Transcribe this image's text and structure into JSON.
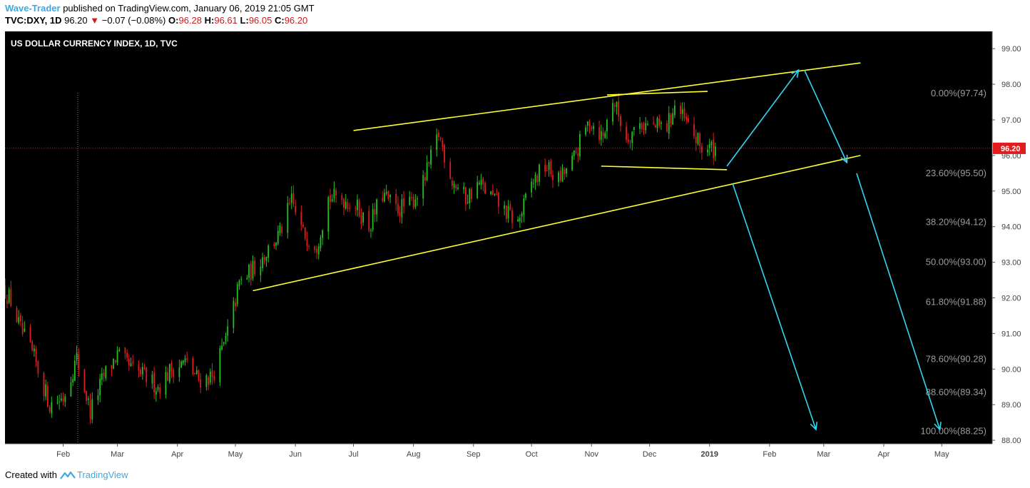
{
  "header": {
    "author": "Wave-Trader",
    "published": "published on TradingView.com, January 06, 2019 21:05 GMT",
    "symbol": "TVC:DXY, 1D",
    "last": "96.20",
    "change": "−0.07 (−0.08%)",
    "o_label": "O:",
    "o": "96.28",
    "h_label": "H:",
    "h": "96.61",
    "l_label": "L:",
    "l": "96.05",
    "c_label": "C:",
    "c": "96.20"
  },
  "footer": {
    "created_with": "Created with",
    "brand": "TradingView"
  },
  "chart_data": {
    "type": "candlestick",
    "title": "US DOLLAR CURRENCY INDEX, 1D, TVC",
    "ylim": [
      87.9,
      99.5
    ],
    "y_ticks": [
      "99.00",
      "98.00",
      "97.00",
      "96.00",
      "95.00",
      "94.00",
      "93.00",
      "92.00",
      "91.00",
      "90.00",
      "89.00",
      "88.00"
    ],
    "x_ticks": [
      "Feb",
      "Mar",
      "Apr",
      "May",
      "Jun",
      "Jul",
      "Aug",
      "Sep",
      "Oct",
      "Nov",
      "Dec",
      "2019",
      "Feb",
      "Mar",
      "Apr",
      "May"
    ],
    "last_price": 96.2,
    "last_price_label": "96.20",
    "colors": {
      "up": "#22c122",
      "down": "#e01c1c",
      "trend": "#ffff33",
      "arrows": "#33d6f0",
      "background": "#000000"
    },
    "fib_levels": [
      {
        "label": "0.00%(97.74)",
        "value": 97.74
      },
      {
        "label": "23.60%(95.50)",
        "value": 95.5
      },
      {
        "label": "38.20%(94.12)",
        "value": 94.12
      },
      {
        "label": "50.00%(93.00)",
        "value": 93.0
      },
      {
        "label": "61.80%(91.88)",
        "value": 91.88
      },
      {
        "label": "78.60%(90.28)",
        "value": 90.28
      },
      {
        "label": "88.60%(89.34)",
        "value": 89.34
      },
      {
        "label": "100.00%(88.25)",
        "value": 88.25
      }
    ],
    "price_path": [
      [
        "2018-01-01",
        92.3
      ],
      [
        "2018-01-05",
        91.9
      ],
      [
        "2018-01-10",
        91.1
      ],
      [
        "2018-01-17",
        90.3
      ],
      [
        "2018-01-25",
        89.0
      ],
      [
        "2018-02-01",
        89.2
      ],
      [
        "2018-02-08",
        90.3
      ],
      [
        "2018-02-15",
        88.8
      ],
      [
        "2018-02-22",
        89.8
      ],
      [
        "2018-03-01",
        90.4
      ],
      [
        "2018-03-08",
        90.0
      ],
      [
        "2018-03-15",
        89.8
      ],
      [
        "2018-03-22",
        89.5
      ],
      [
        "2018-03-29",
        90.0
      ],
      [
        "2018-04-05",
        90.2
      ],
      [
        "2018-04-12",
        89.7
      ],
      [
        "2018-04-19",
        89.8
      ],
      [
        "2018-04-26",
        90.8
      ],
      [
        "2018-05-03",
        92.4
      ],
      [
        "2018-05-10",
        92.8
      ],
      [
        "2018-05-17",
        93.3
      ],
      [
        "2018-05-24",
        93.8
      ],
      [
        "2018-05-30",
        94.7
      ],
      [
        "2018-06-05",
        93.8
      ],
      [
        "2018-06-12",
        93.5
      ],
      [
        "2018-06-18",
        94.8
      ],
      [
        "2018-06-25",
        94.8
      ],
      [
        "2018-07-02",
        94.6
      ],
      [
        "2018-07-09",
        94.0
      ],
      [
        "2018-07-16",
        94.9
      ],
      [
        "2018-07-23",
        94.5
      ],
      [
        "2018-07-30",
        94.6
      ],
      [
        "2018-08-06",
        95.2
      ],
      [
        "2018-08-14",
        96.6
      ],
      [
        "2018-08-21",
        95.3
      ],
      [
        "2018-08-28",
        94.8
      ],
      [
        "2018-09-04",
        95.2
      ],
      [
        "2018-09-11",
        94.8
      ],
      [
        "2018-09-18",
        94.4
      ],
      [
        "2018-09-24",
        94.1
      ],
      [
        "2018-10-01",
        95.2
      ],
      [
        "2018-10-08",
        95.7
      ],
      [
        "2018-10-15",
        95.3
      ],
      [
        "2018-10-22",
        95.8
      ],
      [
        "2018-10-31",
        97.0
      ],
      [
        "2018-11-07",
        96.5
      ],
      [
        "2018-11-12",
        97.6
      ],
      [
        "2018-11-19",
        96.5
      ],
      [
        "2018-11-26",
        96.9
      ],
      [
        "2018-12-03",
        96.8
      ],
      [
        "2018-12-10",
        96.8
      ],
      [
        "2018-12-14",
        97.4
      ],
      [
        "2018-12-21",
        96.8
      ],
      [
        "2018-12-28",
        96.2
      ],
      [
        "2019-01-04",
        96.2
      ]
    ],
    "drawings": {
      "channel_upper": [
        [
          "2018-07-01",
          96.7
        ],
        [
          "2019-03-20",
          98.6
        ]
      ],
      "channel_lower": [
        [
          "2018-05-10",
          92.2
        ],
        [
          "2019-03-20",
          96.0
        ]
      ],
      "flag_upper": [
        [
          "2018-11-09",
          97.7
        ],
        [
          "2018-12-31",
          97.8
        ]
      ],
      "flag_lower": [
        [
          "2018-11-06",
          95.7
        ],
        [
          "2019-01-10",
          95.6
        ]
      ],
      "arrows": [
        [
          [
            "2019-01-10",
            95.7
          ],
          [
            "2019-02-16",
            98.4
          ]
        ],
        [
          [
            "2019-02-19",
            98.4
          ],
          [
            "2019-03-13",
            95.8
          ]
        ],
        [
          [
            "2019-01-13",
            95.2
          ],
          [
            "2019-02-25",
            88.3
          ]
        ],
        [
          [
            "2019-03-18",
            95.5
          ],
          [
            "2019-04-30",
            88.3
          ]
        ]
      ]
    }
  }
}
